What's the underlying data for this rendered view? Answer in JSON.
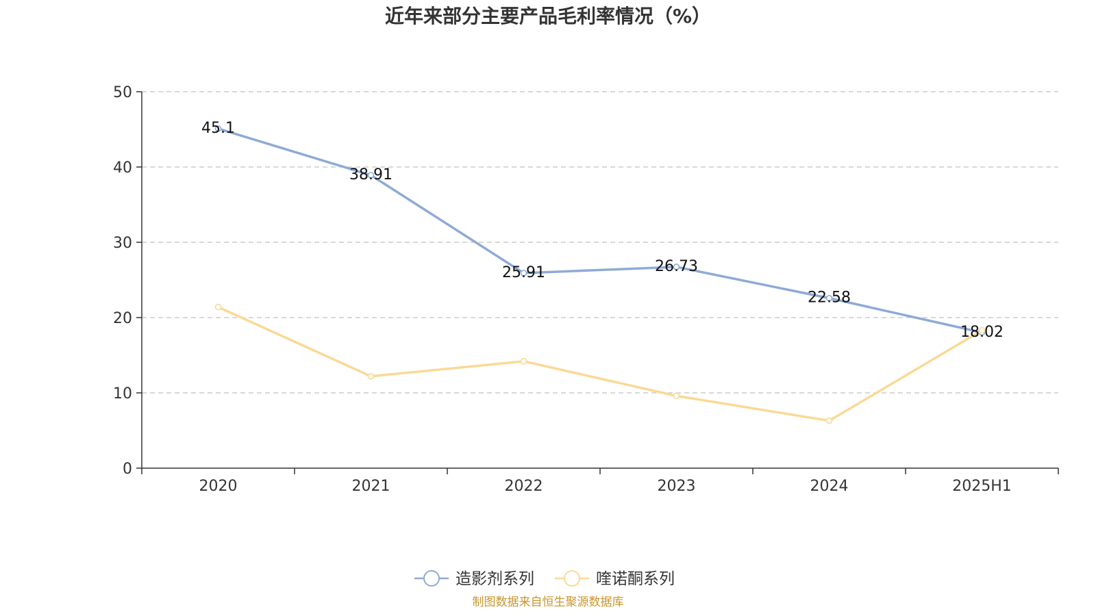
{
  "chart_data": {
    "type": "line",
    "title": "近年来部分主要产品毛利率情况（%）",
    "categories": [
      "2020",
      "2021",
      "2022",
      "2023",
      "2024",
      "2025H1"
    ],
    "ylim": [
      0,
      50
    ],
    "yticks": [
      "0",
      "10",
      "20",
      "30",
      "40",
      "50"
    ],
    "grid": true,
    "legend_position": "bottom-center",
    "series": [
      {
        "name": "造影剂系列",
        "color": "#8eaad6",
        "values": [
          45.1,
          38.91,
          25.91,
          26.73,
          22.58,
          18.02
        ],
        "data_labels": [
          "45.1",
          "38.91",
          "25.91",
          "26.73",
          "22.58",
          "18.02"
        ]
      },
      {
        "name": "喹诺酮系列",
        "color": "#fad995",
        "values": [
          21.4,
          12.2,
          14.2,
          9.6,
          6.3,
          18.3
        ]
      }
    ],
    "source": "制图数据来自恒生聚源数据库"
  }
}
